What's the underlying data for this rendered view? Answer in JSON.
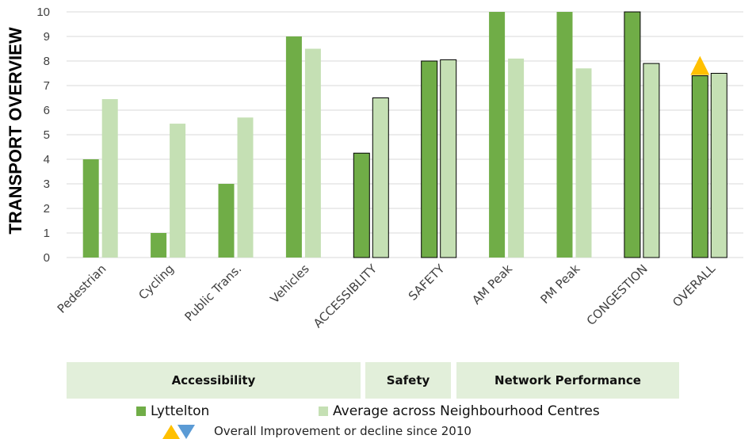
{
  "chart_data": {
    "type": "bar",
    "title": "",
    "ylabel": "TRANSPORT OVERVIEW",
    "xlabel": "",
    "ylim": [
      0,
      10
    ],
    "yticks": [
      "0",
      "1",
      "2",
      "3",
      "4",
      "5",
      "6",
      "7",
      "8",
      "9",
      "10"
    ],
    "grid": true,
    "categories": [
      "Pedestrian",
      "Cycling",
      "Public Trans.",
      "Vehicles",
      "ACCESSIBLITY",
      "SAFETY",
      "AM Peak",
      "PM Peak",
      "CONGESTION",
      "OVERALL"
    ],
    "outlined_categories": [
      "ACCESSIBLITY",
      "SAFETY",
      "CONGESTION",
      "OVERALL"
    ],
    "series": [
      {
        "name": "Lyttelton",
        "color": "#70ad47",
        "values": [
          4,
          1,
          3,
          9,
          4.25,
          8,
          10,
          10,
          10,
          7.4
        ]
      },
      {
        "name": "Average across Neighbourhood Centres",
        "color": "#c5e0b4",
        "values": [
          6.45,
          5.45,
          5.7,
          8.5,
          6.5,
          8.05,
          8.1,
          7.7,
          7.9,
          7.5
        ]
      }
    ],
    "markers": [
      {
        "category": "OVERALL",
        "symbol": "up-triangle",
        "color": "#ffc000"
      }
    ]
  },
  "groups": [
    {
      "label": "Accessibility"
    },
    {
      "label": "Safety"
    },
    {
      "label": "Network Performance"
    }
  ],
  "legend": {
    "lyttelton": "Lyttelton",
    "average": "Average across Neighbourhood Centres",
    "note": "Overall Improvement or decline since 2010"
  },
  "colors": {
    "up": "#ffc000",
    "down": "#5b9bd5",
    "band": "#e2efda"
  }
}
